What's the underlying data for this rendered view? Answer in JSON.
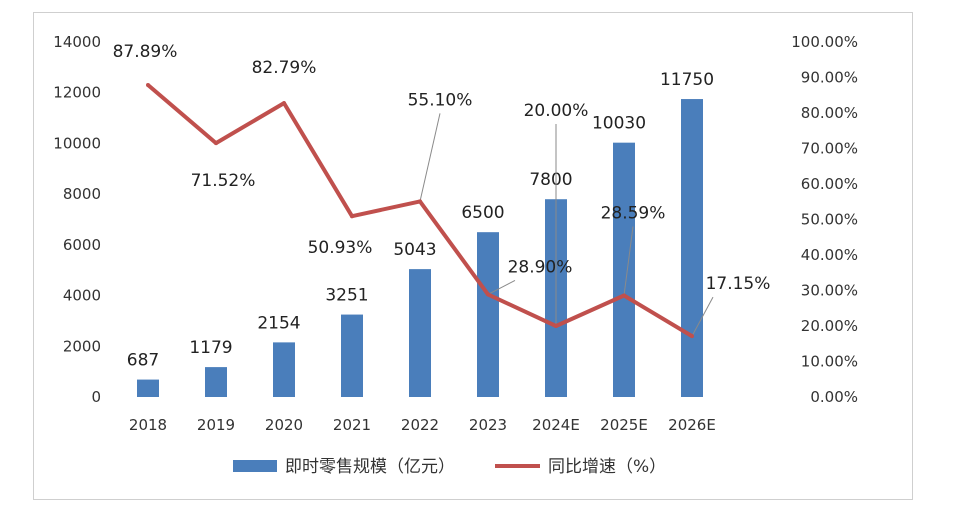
{
  "chart_data": {
    "type": "bar",
    "categories": [
      "2018",
      "2019",
      "2020",
      "2021",
      "2022",
      "2023",
      "2024E",
      "2025E",
      "2026E"
    ],
    "series": [
      {
        "name": "即时零售规模（亿元）",
        "type": "bar",
        "axis": "left",
        "color": "#4A7EBB",
        "values": [
          687,
          1179,
          2154,
          3251,
          5043,
          6500,
          7800,
          10030,
          11750
        ],
        "labels": [
          "687",
          "1179",
          "2154",
          "3251",
          "5043",
          "6500",
          "7800",
          "10030",
          "11750"
        ]
      },
      {
        "name": "同比增速（%）",
        "type": "line",
        "axis": "right",
        "color": "#C0504D",
        "values": [
          87.89,
          71.52,
          82.79,
          50.93,
          55.1,
          28.9,
          20.0,
          28.59,
          17.15
        ],
        "labels": [
          "87.89%",
          "71.52%",
          "82.79%",
          "50.93%",
          "55.10%",
          "28.90%",
          "20.00%",
          "28.59%",
          "17.15%"
        ]
      }
    ],
    "y_left": {
      "range": [
        0,
        14000
      ],
      "ticks": [
        "0",
        "2000",
        "4000",
        "6000",
        "8000",
        "10000",
        "12000",
        "14000"
      ]
    },
    "y_right": {
      "range": [
        0,
        100
      ],
      "ticks": [
        "0.00%",
        "10.00%",
        "20.00%",
        "30.00%",
        "40.00%",
        "50.00%",
        "60.00%",
        "70.00%",
        "80.00%",
        "90.00%",
        "100.00%"
      ]
    },
    "grid": false,
    "legend": "bottom"
  }
}
